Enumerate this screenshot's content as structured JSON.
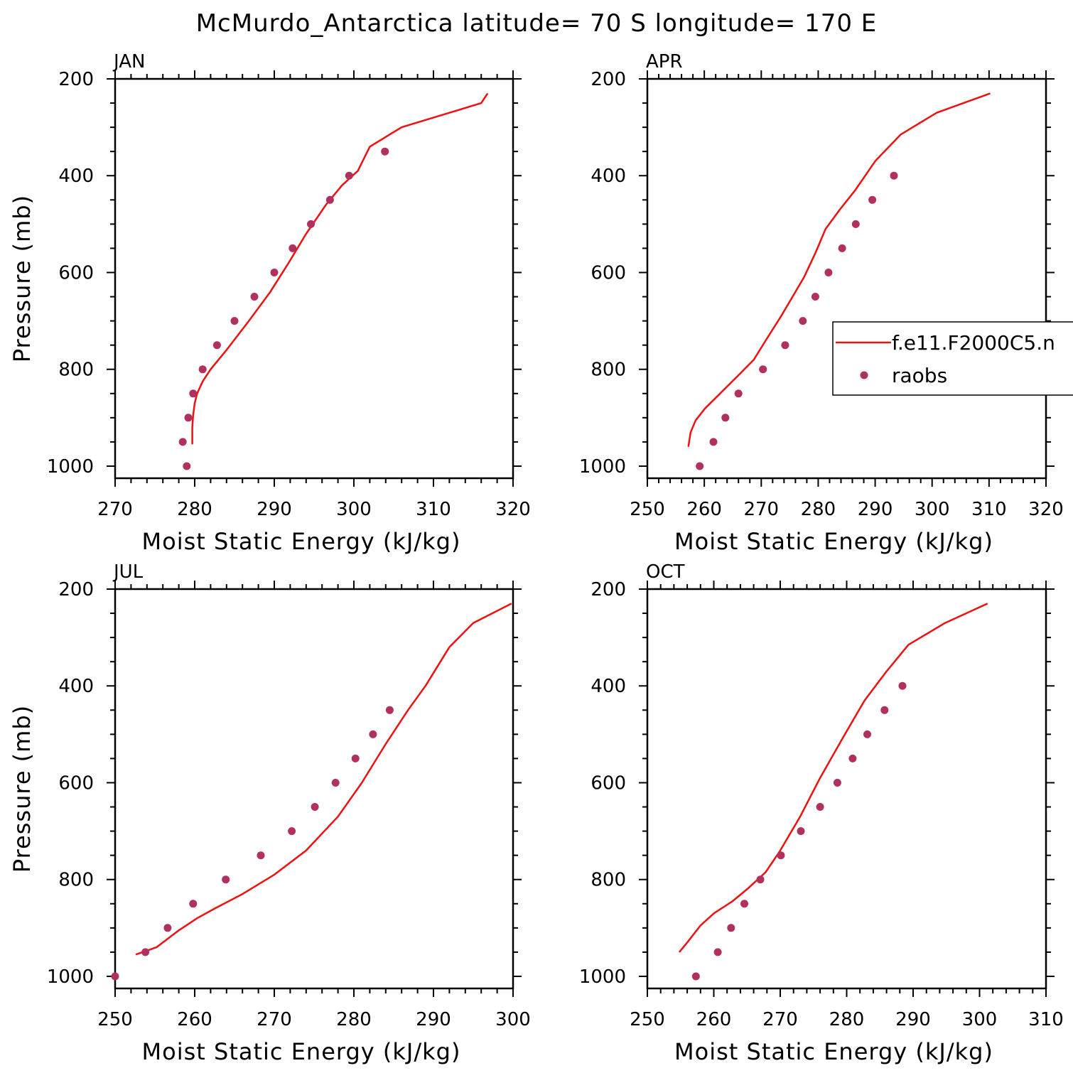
{
  "title": "McMurdo_Antarctica  latitude= 70 S longitude= 170 E",
  "legend": {
    "model_label": "f.e11.F2000C5.n",
    "obs_label": "raobs"
  },
  "colors": {
    "model_line": "#ee1111",
    "obs_marker": "#b03060",
    "axis": "#000000"
  },
  "chart_data": [
    {
      "type": "line",
      "panel": "JAN",
      "xlabel": "Moist Static Energy (kJ/kg)",
      "ylabel": "Pressure (mb)",
      "xlim": [
        270,
        320
      ],
      "ylim": [
        1025,
        200
      ],
      "x_ticks": [
        270,
        280,
        290,
        300,
        310,
        320
      ],
      "y_ticks": [
        200,
        400,
        600,
        800,
        1000
      ],
      "series": [
        {
          "name": "f.e11.F2000C5.n",
          "kind": "line",
          "points": [
            [
              279.7,
              955
            ],
            [
              279.7,
              940
            ],
            [
              279.7,
              920
            ],
            [
              279.8,
              895
            ],
            [
              280.0,
              870
            ],
            [
              280.3,
              850
            ],
            [
              281.0,
              825
            ],
            [
              282.0,
              800
            ],
            [
              284.0,
              760
            ],
            [
              286.8,
              700
            ],
            [
              289.5,
              640
            ],
            [
              291.8,
              580
            ],
            [
              294.0,
              520
            ],
            [
              296.5,
              460
            ],
            [
              298.5,
              420
            ],
            [
              300.5,
              390
            ],
            [
              302.0,
              340
            ],
            [
              306.0,
              300
            ],
            [
              312.0,
              270
            ],
            [
              316.0,
              250
            ],
            [
              316.8,
              230
            ]
          ]
        },
        {
          "name": "raobs",
          "kind": "scatter",
          "points": [
            [
              279.0,
              1000
            ],
            [
              278.5,
              950
            ],
            [
              279.2,
              900
            ],
            [
              279.8,
              850
            ],
            [
              281.0,
              800
            ],
            [
              282.8,
              750
            ],
            [
              285.0,
              700
            ],
            [
              287.5,
              650
            ],
            [
              290.0,
              600
            ],
            [
              292.3,
              550
            ],
            [
              294.6,
              500
            ],
            [
              297.0,
              450
            ],
            [
              299.4,
              400
            ],
            [
              303.9,
              350
            ]
          ]
        }
      ]
    },
    {
      "type": "line",
      "panel": "APR",
      "xlabel": "Moist Static Energy (kJ/kg)",
      "ylabel": "",
      "xlim": [
        250,
        320
      ],
      "ylim": [
        1025,
        200
      ],
      "x_ticks": [
        250,
        260,
        270,
        280,
        290,
        300,
        310,
        320
      ],
      "y_ticks": [
        200,
        400,
        600,
        800,
        1000
      ],
      "series": [
        {
          "name": "f.e11.F2000C5.n",
          "kind": "line",
          "points": [
            [
              257.2,
              960
            ],
            [
              257.6,
              930
            ],
            [
              258.5,
              905
            ],
            [
              260.2,
              880
            ],
            [
              263.2,
              845
            ],
            [
              266.2,
              810
            ],
            [
              268.7,
              780
            ],
            [
              270.8,
              740
            ],
            [
              273.5,
              690
            ],
            [
              275.5,
              650
            ],
            [
              277.5,
              610
            ],
            [
              279.5,
              560
            ],
            [
              281.3,
              510
            ],
            [
              283.8,
              470
            ],
            [
              286.5,
              430
            ],
            [
              290.0,
              370
            ],
            [
              294.5,
              315
            ],
            [
              300.8,
              270
            ],
            [
              310.2,
              230
            ]
          ]
        },
        {
          "name": "raobs",
          "kind": "scatter",
          "points": [
            [
              259.2,
              1000
            ],
            [
              261.6,
              950
            ],
            [
              263.7,
              900
            ],
            [
              266.0,
              850
            ],
            [
              270.3,
              800
            ],
            [
              274.2,
              750
            ],
            [
              277.3,
              700
            ],
            [
              279.5,
              650
            ],
            [
              281.8,
              600
            ],
            [
              284.2,
              550
            ],
            [
              286.6,
              500
            ],
            [
              289.5,
              450
            ],
            [
              293.3,
              400
            ]
          ]
        }
      ]
    },
    {
      "type": "line",
      "panel": "JUL",
      "xlabel": "Moist Static Energy (kJ/kg)",
      "ylabel": "Pressure (mb)",
      "xlim": [
        250,
        300
      ],
      "ylim": [
        1025,
        200
      ],
      "x_ticks": [
        250,
        260,
        270,
        280,
        290,
        300
      ],
      "y_ticks": [
        200,
        400,
        600,
        800,
        1000
      ],
      "series": [
        {
          "name": "f.e11.F2000C5.n",
          "kind": "line",
          "points": [
            [
              252.6,
              955
            ],
            [
              255.2,
              940
            ],
            [
              258.0,
              905
            ],
            [
              260.3,
              880
            ],
            [
              262.5,
              860
            ],
            [
              266.0,
              830
            ],
            [
              270.0,
              790
            ],
            [
              274.0,
              740
            ],
            [
              278.0,
              670
            ],
            [
              281.0,
              600
            ],
            [
              284.0,
              520
            ],
            [
              286.8,
              450
            ],
            [
              289.0,
              400
            ],
            [
              292.0,
              320
            ],
            [
              295.0,
              270
            ],
            [
              299.8,
              230
            ]
          ]
        },
        {
          "name": "raobs",
          "kind": "scatter",
          "points": [
            [
              250.0,
              1000
            ],
            [
              253.8,
              950
            ],
            [
              256.6,
              900
            ],
            [
              259.8,
              850
            ],
            [
              263.9,
              800
            ],
            [
              268.3,
              750
            ],
            [
              272.2,
              700
            ],
            [
              275.1,
              650
            ],
            [
              277.7,
              600
            ],
            [
              280.2,
              550
            ],
            [
              282.4,
              500
            ],
            [
              284.5,
              450
            ]
          ]
        }
      ]
    },
    {
      "type": "line",
      "panel": "OCT",
      "xlabel": "Moist Static Energy (kJ/kg)",
      "ylabel": "",
      "xlim": [
        250,
        310
      ],
      "ylim": [
        1025,
        200
      ],
      "x_ticks": [
        250,
        260,
        270,
        280,
        290,
        300,
        310
      ],
      "y_ticks": [
        200,
        400,
        600,
        800,
        1000
      ],
      "series": [
        {
          "name": "f.e11.F2000C5.n",
          "kind": "line",
          "points": [
            [
              254.8,
              950
            ],
            [
              256.0,
              930
            ],
            [
              258.0,
              895
            ],
            [
              260.0,
              870
            ],
            [
              262.8,
              845
            ],
            [
              265.0,
              820
            ],
            [
              267.8,
              785
            ],
            [
              270.0,
              740
            ],
            [
              273.0,
              670
            ],
            [
              276.0,
              590
            ],
            [
              279.3,
              510
            ],
            [
              282.7,
              430
            ],
            [
              286.0,
              370
            ],
            [
              289.3,
              315
            ],
            [
              294.8,
              270
            ],
            [
              301.2,
              230
            ]
          ]
        },
        {
          "name": "raobs",
          "kind": "scatter",
          "points": [
            [
              257.3,
              1000
            ],
            [
              260.6,
              950
            ],
            [
              262.6,
              900
            ],
            [
              264.6,
              850
            ],
            [
              267.0,
              800
            ],
            [
              270.1,
              750
            ],
            [
              273.1,
              700
            ],
            [
              276.0,
              650
            ],
            [
              278.6,
              600
            ],
            [
              280.9,
              550
            ],
            [
              283.1,
              500
            ],
            [
              285.7,
              450
            ],
            [
              288.4,
              400
            ]
          ]
        }
      ]
    }
  ]
}
